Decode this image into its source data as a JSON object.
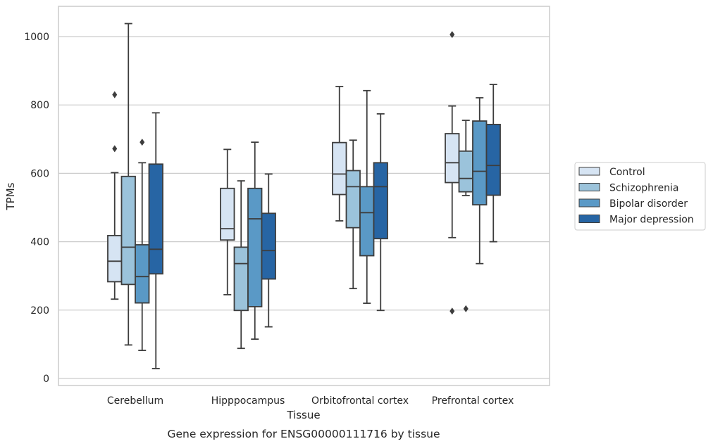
{
  "chart_data": {
    "type": "box",
    "caption": "Gene expression for ENSG00000111716 by tissue",
    "xlabel": "Tissue",
    "ylabel": "TPMs",
    "ylim": [
      -20,
      1090
    ],
    "yticks": [
      0,
      200,
      400,
      600,
      800,
      1000
    ],
    "grid": "horizontal",
    "legend_position": "right",
    "categories": [
      "Cerebellum",
      "Hipppocampus",
      "Orbitofrontal cortex",
      "Prefrontal cortex"
    ],
    "series": [
      {
        "name": "Control",
        "color": "#d6e4f3",
        "boxes": [
          {
            "whislo": 232,
            "q1": 283,
            "med": 343,
            "q3": 418,
            "whishi": 602,
            "fliers": [
              672,
              830
            ]
          },
          {
            "whislo": 245,
            "q1": 405,
            "med": 438,
            "q3": 556,
            "whishi": 670,
            "fliers": []
          },
          {
            "whislo": 461,
            "q1": 538,
            "med": 598,
            "q3": 690,
            "whishi": 854,
            "fliers": []
          },
          {
            "whislo": 412,
            "q1": 573,
            "med": 631,
            "q3": 716,
            "whishi": 797,
            "fliers": [
              197,
              1006
            ]
          }
        ]
      },
      {
        "name": "Schizophrenia",
        "color": "#9bc3db",
        "boxes": [
          {
            "whislo": 98,
            "q1": 275,
            "med": 384,
            "q3": 591,
            "whishi": 1038,
            "fliers": []
          },
          {
            "whislo": 88,
            "q1": 199,
            "med": 336,
            "q3": 384,
            "whishi": 578,
            "fliers": []
          },
          {
            "whislo": 263,
            "q1": 441,
            "med": 561,
            "q3": 608,
            "whishi": 697,
            "fliers": []
          },
          {
            "whislo": 535,
            "q1": 546,
            "med": 585,
            "q3": 665,
            "whishi": 755,
            "fliers": [
              204
            ]
          }
        ]
      },
      {
        "name": "Bipolar disorder",
        "color": "#5a99c6",
        "boxes": [
          {
            "whislo": 82,
            "q1": 221,
            "med": 298,
            "q3": 391,
            "whishi": 631,
            "fliers": [
              691
            ]
          },
          {
            "whislo": 115,
            "q1": 210,
            "med": 467,
            "q3": 556,
            "whishi": 691,
            "fliers": []
          },
          {
            "whislo": 220,
            "q1": 359,
            "med": 485,
            "q3": 561,
            "whishi": 842,
            "fliers": []
          },
          {
            "whislo": 336,
            "q1": 508,
            "med": 606,
            "q3": 753,
            "whishi": 821,
            "fliers": []
          }
        ]
      },
      {
        "name": "Major depression",
        "color": "#2765a4",
        "boxes": [
          {
            "whislo": 29,
            "q1": 306,
            "med": 378,
            "q3": 627,
            "whishi": 777,
            "fliers": []
          },
          {
            "whislo": 151,
            "q1": 291,
            "med": 374,
            "q3": 483,
            "whishi": 598,
            "fliers": []
          },
          {
            "whislo": 199,
            "q1": 409,
            "med": 561,
            "q3": 631,
            "whishi": 774,
            "fliers": []
          },
          {
            "whislo": 400,
            "q1": 536,
            "med": 623,
            "q3": 743,
            "whishi": 860,
            "fliers": []
          }
        ]
      }
    ]
  }
}
